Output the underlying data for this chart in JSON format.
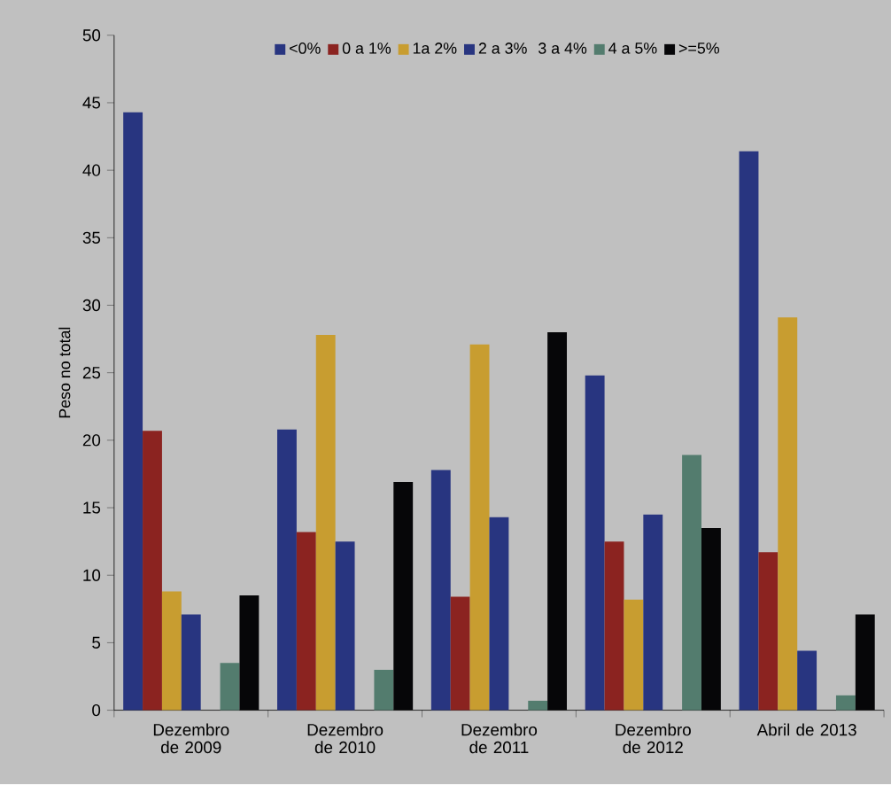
{
  "chart_data": {
    "type": "bar",
    "ylabel": "Peso no total",
    "categories": [
      "Dezembro de 2009",
      "Dezembro de 2010",
      "Dezembro de 2011",
      "Dezembro de 2012",
      "Abril de 2013"
    ],
    "series": [
      {
        "name": "<0%",
        "color": "#283580",
        "values": [
          44.3,
          20.8,
          17.8,
          24.8,
          41.4
        ]
      },
      {
        "name": "0 a 1%",
        "color": "#8b2320",
        "values": [
          20.7,
          13.2,
          8.4,
          12.5,
          11.7
        ]
      },
      {
        "name": "1a 2%",
        "color": "#c89d30",
        "values": [
          8.8,
          27.8,
          27.1,
          8.2,
          29.1
        ]
      },
      {
        "name": "2 a 3%",
        "color": "#283580",
        "values": [
          7.1,
          12.5,
          14.3,
          14.5,
          4.4
        ]
      },
      {
        "name": "3 a 4%",
        "values": [
          null,
          null,
          null,
          null,
          null
        ]
      },
      {
        "name": "4 a 5%",
        "color": "#537c6e",
        "values": [
          3.5,
          3.0,
          0.7,
          18.9,
          1.1
        ]
      },
      {
        "name": ">=5%",
        "color": "#060608",
        "values": [
          8.5,
          16.9,
          28.0,
          13.5,
          7.1
        ]
      }
    ],
    "ylim": [
      0,
      50
    ],
    "yticks": [
      0,
      5,
      10,
      15,
      20,
      25,
      30,
      35,
      40,
      45,
      50
    ],
    "legend": "top"
  }
}
